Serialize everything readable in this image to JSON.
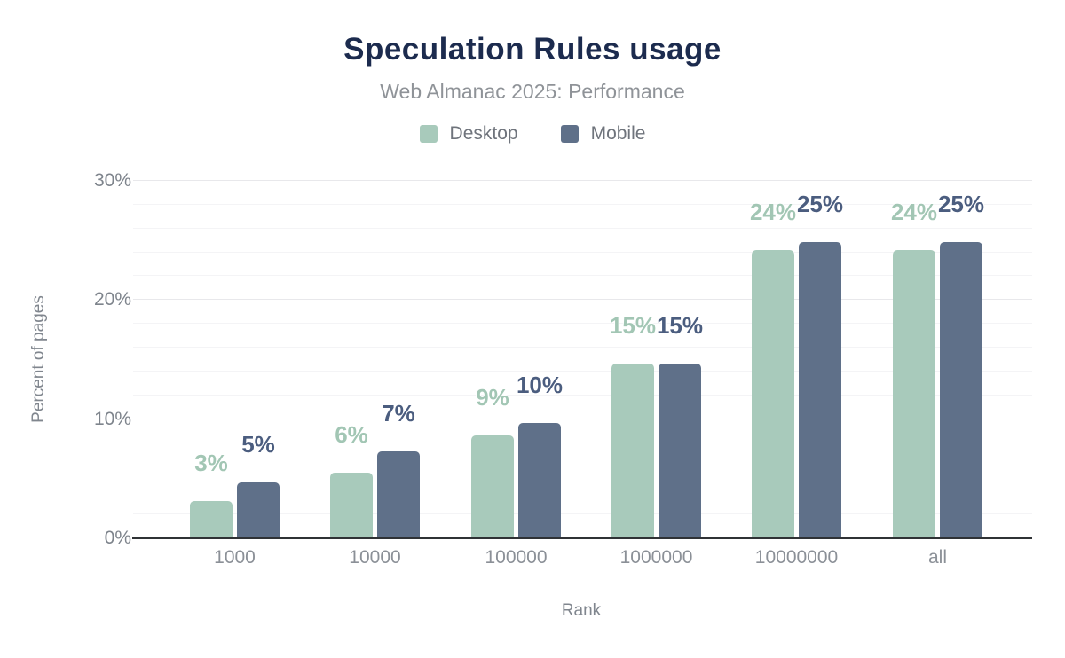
{
  "chart_data": {
    "type": "bar",
    "title": "Speculation Rules usage",
    "title_color": "#1c2b4e",
    "subtitle": "Web Almanac 2025: Performance",
    "xlabel": "Rank",
    "ylabel": "Percent of pages",
    "categories": [
      "1000",
      "10000",
      "100000",
      "1000000",
      "10000000",
      "all"
    ],
    "series": [
      {
        "name": "Desktop",
        "color": "#a8cabb",
        "label_color": "#a2c6b4",
        "values": [
          3.1,
          5.5,
          8.6,
          14.7,
          24.2,
          24.2
        ],
        "data_labels": [
          "3%",
          "6%",
          "9%",
          "15%",
          "24%",
          "24%"
        ]
      },
      {
        "name": "Mobile",
        "color": "#5f7089",
        "label_color": "#4b5d7f",
        "values": [
          4.7,
          7.3,
          9.7,
          14.7,
          24.9,
          24.9
        ],
        "data_labels": [
          "5%",
          "7%",
          "10%",
          "15%",
          "25%",
          "25%"
        ]
      }
    ],
    "y_ticks": [
      "0%",
      "10%",
      "20%",
      "30%"
    ],
    "ylim": [
      0,
      30
    ],
    "grid": "horizontal, minor every 2%, major every 10%",
    "legend_position": "top"
  }
}
